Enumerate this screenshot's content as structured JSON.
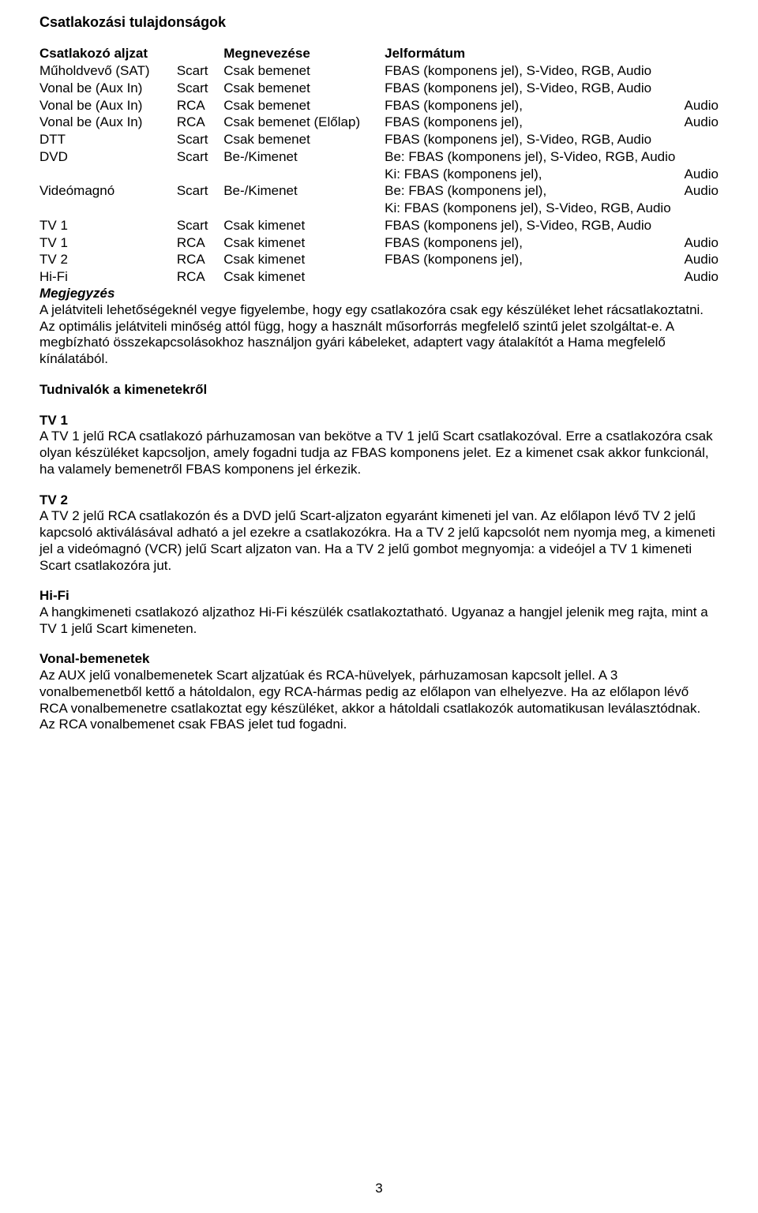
{
  "title": "Csatlakozási tulajdonságok",
  "table": {
    "header": [
      "Csatlakozó aljzat",
      "",
      "Megnevezése",
      "Jelformátum",
      ""
    ],
    "rows": [
      [
        "Műholdvevő (SAT)",
        "Scart",
        "Csak bemenet",
        "FBAS (komponens jel), S-Video, RGB, Audio",
        ""
      ],
      [
        "Vonal be (Aux In)",
        "Scart",
        "Csak bemenet",
        "FBAS (komponens jel), S-Video, RGB, Audio",
        ""
      ],
      [
        "Vonal be (Aux In)",
        "RCA",
        "Csak bemenet",
        "FBAS (komponens jel),",
        "Audio"
      ],
      [
        "Vonal be (Aux In)",
        "RCA",
        "Csak bemenet (Előlap)",
        "FBAS (komponens jel),",
        "Audio"
      ],
      [
        "DTT",
        "Scart",
        "Csak bemenet",
        "FBAS (komponens jel), S-Video, RGB, Audio",
        ""
      ],
      [
        "DVD",
        "Scart",
        "Be-/Kimenet",
        "Be:  FBAS (komponens jel), S-Video, RGB, Audio",
        ""
      ],
      [
        "",
        "",
        "",
        "Ki:   FBAS (komponens jel),",
        "Audio"
      ],
      [
        "Videómagnó",
        "Scart",
        "Be-/Kimenet",
        "Be:  FBAS (komponens jel),",
        "Audio"
      ],
      [
        "",
        "",
        "",
        "Ki:   FBAS (komponens jel), S-Video, RGB, Audio",
        ""
      ],
      [
        "TV 1",
        "Scart",
        "Csak kimenet",
        "FBAS (komponens jel), S-Video, RGB, Audio",
        ""
      ],
      [
        "TV 1",
        "RCA",
        "Csak kimenet",
        "FBAS (komponens jel),",
        "Audio"
      ],
      [
        "TV 2",
        "RCA",
        "Csak kimenet",
        "FBAS (komponens jel),",
        "Audio"
      ],
      [
        "Hi-Fi",
        "RCA",
        "Csak kimenet",
        "",
        "Audio"
      ]
    ]
  },
  "note_heading": "Megjegyzés",
  "note_body": "A jelátviteli lehetőségeknél vegye figyelembe, hogy egy csatlakozóra csak egy készüléket lehet rácsatlakoztatni. Az optimális jelátviteli minőség attól függ, hogy a használt műsorforrás megfelelő szintű jelet szolgáltat-e. A megbízható összekapcsolásokhoz használjon gyári kábeleket, adaptert vagy átalakítót a Hama megfelelő kínálatából.",
  "outputs_heading": "Tudnivalók a kimenetekről",
  "sections": [
    {
      "title": "TV 1",
      "body": "A TV 1 jelű RCA csatlakozó párhuzamosan van bekötve a TV 1 jelű Scart csatlakozóval. Erre a csatlakozóra csak olyan készüléket kapcsoljon, amely fogadni tudja az FBAS komponens jelet. Ez a kimenet csak akkor funkcionál, ha valamely bemenetről FBAS komponens jel érkezik."
    },
    {
      "title": "TV 2",
      "body": "A TV 2 jelű RCA csatlakozón és a DVD jelű Scart-aljzaton egyaránt kimeneti jel van. Az előlapon lévő TV 2 jelű kapcsoló aktiválásával adható a jel ezekre a csatlakozókra. Ha a TV 2 jelű kapcsolót nem nyomja meg, a kimeneti jel a videómagnó (VCR) jelű Scart aljzaton van. Ha a TV 2 jelű gombot megnyomja: a videójel a TV 1 kimeneti Scart csatlakozóra jut."
    },
    {
      "title": "Hi-Fi",
      "body": "A hangkimeneti csatlakozó aljzathoz Hi-Fi készülék csatlakoztatható. Ugyanaz a hangjel jelenik meg rajta, mint a TV 1 jelű Scart kimeneten."
    },
    {
      "title": "Vonal-bemenetek",
      "body": "Az AUX jelű vonalbemenetek Scart aljzatúak és RCA-hüvelyek, párhuzamosan kapcsolt jellel. A 3 vonalbemenetből kettő a hátoldalon, egy RCA-hármas pedig az előlapon van elhelyezve. Ha az előlapon lévő RCA vonalbemenetre csatlakoztat egy készüléket, akkor a hátoldali csatlakozók automatikusan leválasztódnak. Az RCA vonalbemenet csak FBAS jelet tud fogadni."
    }
  ],
  "page_number": "3"
}
